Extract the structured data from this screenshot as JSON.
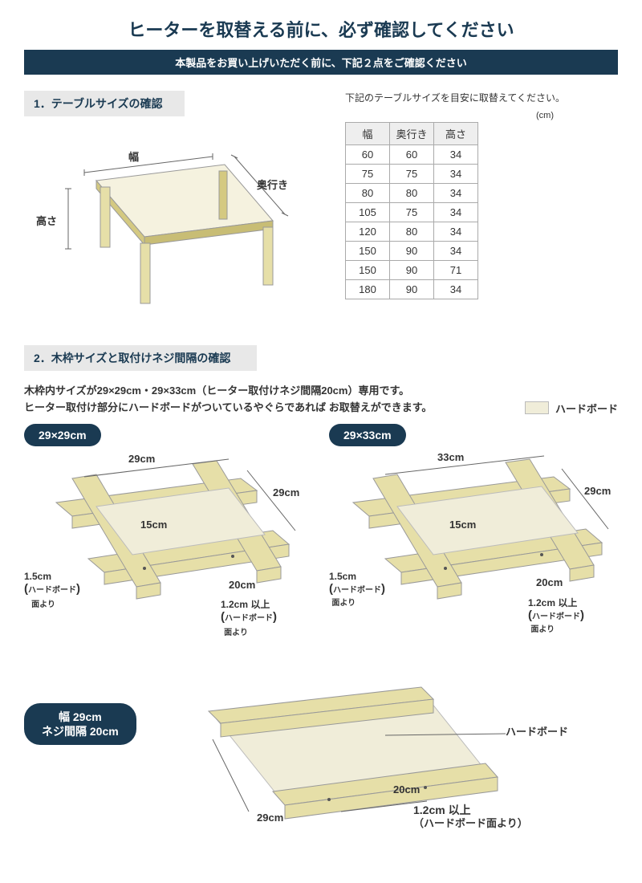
{
  "main_title": "ヒーターを取替える前に、必ず確認してください",
  "subtitle": "本製品をお買い上げいただく前に、下記２点をご確認ください",
  "section1": {
    "header": "1．テーブルサイズの確認",
    "note": "下記のテーブルサイズを目安に取替えてください。",
    "unit": "(cm)",
    "labels": {
      "width": "幅",
      "depth": "奥行き",
      "height": "高さ"
    },
    "table_headers": [
      "幅",
      "奥行き",
      "高さ"
    ],
    "table_rows": [
      [
        "60",
        "60",
        "34"
      ],
      [
        "75",
        "75",
        "34"
      ],
      [
        "80",
        "80",
        "34"
      ],
      [
        "105",
        "75",
        "34"
      ],
      [
        "120",
        "80",
        "34"
      ],
      [
        "150",
        "90",
        "34"
      ],
      [
        "150",
        "90",
        "71"
      ],
      [
        "180",
        "90",
        "34"
      ]
    ]
  },
  "section2": {
    "header": "2．木枠サイズと取付けネジ間隔の確認",
    "para1": "木枠内サイズが29×29cm・29×33cm（ヒーター取付けネジ間隔20cm）専用です。",
    "para2": "ヒーター取付け部分にハードボードがついているやぐらであれば お取替えができます。",
    "legend": "ハードボード",
    "pill29": "29×29cm",
    "pill33": "29×33cm",
    "pill_bottom_l1": "幅 29cm",
    "pill_bottom_l2": "ネジ間隔 20cm",
    "dims": {
      "d29": "29cm",
      "d33": "33cm",
      "d15": "15cm",
      "d20": "20cm",
      "d1_5": "1.5cm",
      "d1_2": "1.2cm 以上",
      "hb_from": "ハードボード",
      "hb_from2": "面より",
      "hb_label": "ハードボード",
      "hb_from_long": "（ハードボード面より）"
    }
  },
  "colors": {
    "navy": "#1a3a52",
    "wood": "#e6dfa8",
    "wood_dark": "#d4c981",
    "board": "#f0edd9",
    "line": "#666",
    "table_top": "#f5f2df"
  }
}
